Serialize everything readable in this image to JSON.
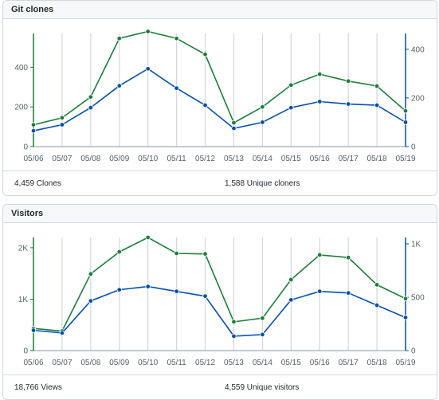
{
  "panels": [
    {
      "title": "Git clones",
      "summary_left": "4,459 Clones",
      "summary_right": "1,588 Unique cloners"
    },
    {
      "title": "Visitors",
      "summary_left": "18,766 Views",
      "summary_right": "4,559 Unique visitors"
    }
  ],
  "colors": {
    "total": "#1a7f37",
    "unique": "#0550ae",
    "grid": "#d0d7de"
  },
  "chart_data": [
    {
      "type": "line",
      "x": [
        "05/06",
        "05/07",
        "05/08",
        "05/09",
        "05/10",
        "05/11",
        "05/12",
        "05/13",
        "05/14",
        "05/15",
        "05/16",
        "05/17",
        "05/18",
        "05/19"
      ],
      "left_axis": {
        "ticks": [
          0,
          200,
          400
        ],
        "tick_labels": [
          "0",
          "200",
          "400"
        ],
        "ylim": [
          0,
          570
        ]
      },
      "right_axis": {
        "ticks": [
          0,
          200,
          400
        ],
        "tick_labels": [
          "0",
          "200",
          "400"
        ],
        "ylim": [
          0,
          465
        ]
      },
      "series": [
        {
          "axis": "left",
          "color": "#1a7f37",
          "values": [
            110,
            145,
            250,
            545,
            580,
            545,
            465,
            120,
            200,
            310,
            365,
            330,
            305,
            180
          ]
        },
        {
          "axis": "right",
          "color": "#0550ae",
          "values": [
            65,
            90,
            160,
            250,
            320,
            240,
            170,
            75,
            100,
            160,
            185,
            175,
            170,
            100
          ]
        }
      ],
      "grid": true
    },
    {
      "type": "line",
      "x": [
        "05/06",
        "05/07",
        "05/08",
        "05/09",
        "05/10",
        "05/11",
        "05/12",
        "05/13",
        "05/14",
        "05/15",
        "05/16",
        "05/17",
        "05/18",
        "05/19"
      ],
      "left_axis": {
        "ticks": [
          0,
          1000,
          2000
        ],
        "tick_labels": [
          "0",
          "1K",
          "2K"
        ],
        "ylim": [
          0,
          2200
        ]
      },
      "right_axis": {
        "ticks": [
          0,
          500,
          1000
        ],
        "tick_labels": [
          "0",
          "500",
          "1K"
        ],
        "ylim": [
          0,
          1060
        ]
      },
      "series": [
        {
          "axis": "left",
          "color": "#1a7f37",
          "values": [
            430,
            380,
            1490,
            1920,
            2200,
            1890,
            1880,
            560,
            630,
            1380,
            1860,
            1810,
            1280,
            1010
          ]
        },
        {
          "axis": "right",
          "color": "#0550ae",
          "values": [
            190,
            165,
            465,
            570,
            600,
            555,
            510,
            135,
            150,
            475,
            555,
            540,
            425,
            310
          ]
        }
      ],
      "grid": true
    }
  ]
}
